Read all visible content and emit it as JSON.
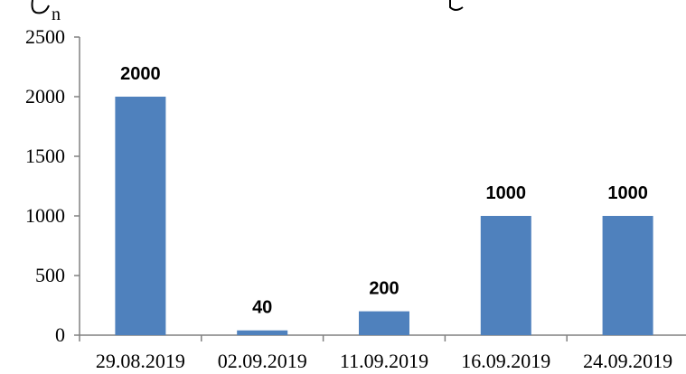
{
  "chart_data": {
    "type": "bar",
    "categories": [
      "29.08.2019",
      "02.09.2019",
      "11.09.2019",
      "16.09.2019",
      "24.09.2019"
    ],
    "values": [
      2000,
      40,
      200,
      1000,
      1000
    ],
    "data_labels": [
      "2000",
      "40",
      "200",
      "1000",
      "1000"
    ],
    "ylabel": "n",
    "ylim": [
      0,
      2500
    ],
    "yticks": [
      0,
      500,
      1000,
      1500,
      2000,
      2500
    ],
    "grid": false,
    "bar_color": "#4f81bd"
  }
}
